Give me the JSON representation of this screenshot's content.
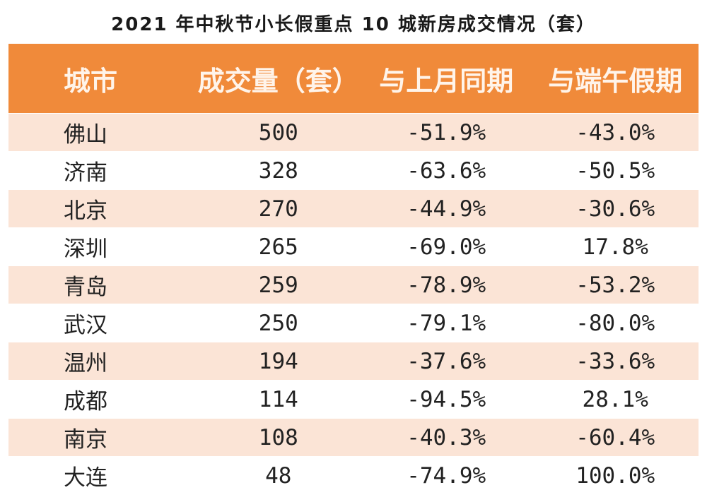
{
  "chart_data": {
    "type": "table",
    "title": "2021 年中秋节小长假重点 10 城新房成交情况（套）",
    "columns": [
      "城市",
      "成交量（套）",
      "与上月同期",
      "与端午假期"
    ],
    "rows": [
      [
        "佛山",
        "500",
        "-51.9%",
        "-43.0%"
      ],
      [
        "济南",
        "328",
        "-63.6%",
        "-50.5%"
      ],
      [
        "北京",
        "270",
        "-44.9%",
        "-30.6%"
      ],
      [
        "深圳",
        "265",
        "-69.0%",
        "17.8%"
      ],
      [
        "青岛",
        "259",
        "-78.9%",
        "-53.2%"
      ],
      [
        "武汉",
        "250",
        "-79.1%",
        "-80.0%"
      ],
      [
        "温州",
        "194",
        "-37.6%",
        "-33.6%"
      ],
      [
        "成都",
        "114",
        "-94.5%",
        "28.1%"
      ],
      [
        "南京",
        "108",
        "-40.3%",
        "-60.4%"
      ],
      [
        "大连",
        "48",
        "-74.9%",
        "100.0%"
      ]
    ],
    "colors": {
      "header_bg": "#f08a3a",
      "header_text": "#fff4ea",
      "row_alt_bg": "#fbe4d6"
    }
  }
}
